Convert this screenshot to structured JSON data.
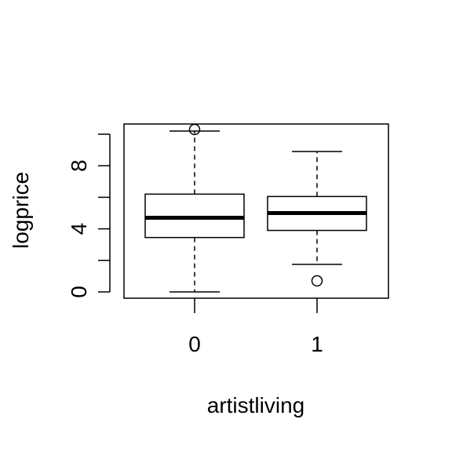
{
  "chart_data": {
    "type": "boxplot",
    "title": "",
    "xlabel": "artistliving",
    "ylabel": "logprice",
    "categories": [
      "0",
      "1"
    ],
    "ylim": [
      -0.4,
      10.7
    ],
    "yticks": [
      0,
      2,
      4,
      6,
      8,
      10
    ],
    "ytick_labels": [
      "0",
      "",
      "4",
      "",
      "8",
      ""
    ],
    "boxes": [
      {
        "category": "0",
        "whisker_low": 0.0,
        "q1": 3.45,
        "median": 4.7,
        "q3": 6.2,
        "whisker_high": 10.2,
        "outliers": [
          10.3
        ]
      },
      {
        "category": "1",
        "whisker_low": 1.75,
        "q1": 3.9,
        "median": 5.0,
        "q3": 6.05,
        "whisker_high": 8.9,
        "outliers": [
          0.7
        ]
      }
    ],
    "grid": false,
    "legend": "none"
  }
}
